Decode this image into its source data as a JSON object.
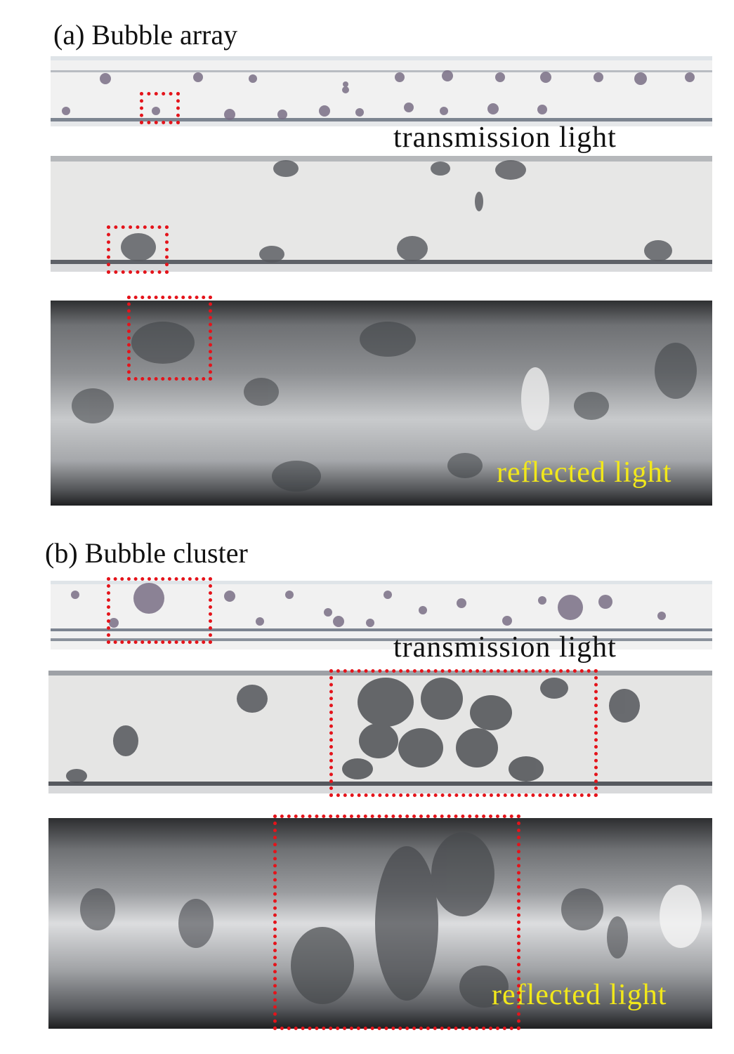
{
  "section_a": {
    "title": "(a) Bubble array",
    "transmission_caption": "transmission  light",
    "reflected_caption": "reflected  light"
  },
  "section_b": {
    "title": "(b) Bubble cluster",
    "transmission_caption": "transmission  light",
    "reflected_caption": "reflected  light"
  },
  "colors": {
    "highlight_box": "#e4141b",
    "reflected_caption": "#f2e81a"
  }
}
